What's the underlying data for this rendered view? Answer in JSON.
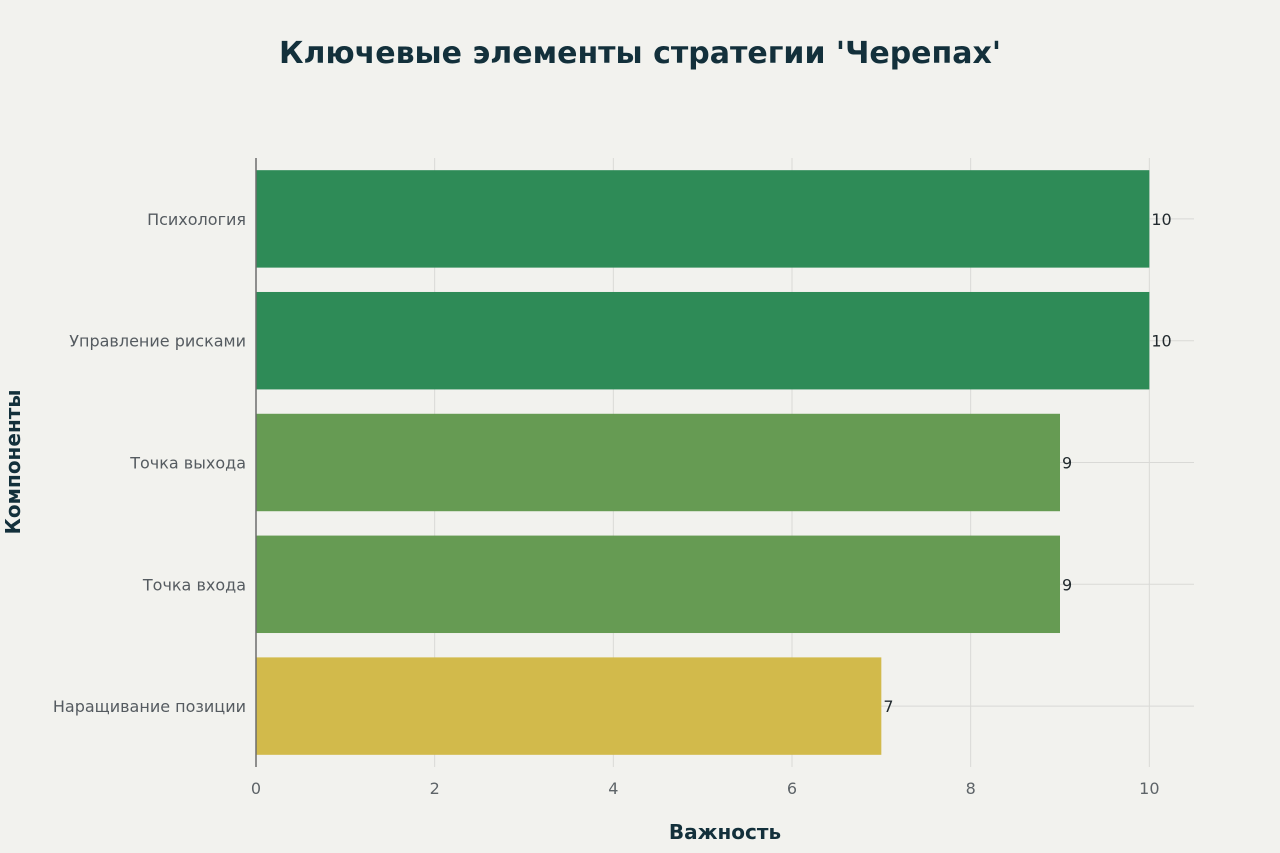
{
  "chart_data": {
    "type": "bar",
    "orientation": "horizontal",
    "title": "Ключевые элементы стратегии 'Черепах'",
    "xlabel": "Важность",
    "ylabel": "Компоненты",
    "xlim": [
      0,
      10.5
    ],
    "xticks": [
      0,
      2,
      4,
      6,
      8,
      10
    ],
    "grid": true,
    "categories": [
      "Психология",
      "Управление рисками",
      "Точка выхода",
      "Точка входа",
      "Наращивание позиции"
    ],
    "values": [
      10,
      10,
      9,
      9,
      7
    ],
    "colors": [
      "#2e8b57",
      "#2e8b57",
      "#669b53",
      "#669b53",
      "#d2ba4b"
    ]
  },
  "style": {
    "background": "#f2f2ee",
    "grid_color": "#d9d9d6",
    "axis_color": "#6d6d6d"
  }
}
